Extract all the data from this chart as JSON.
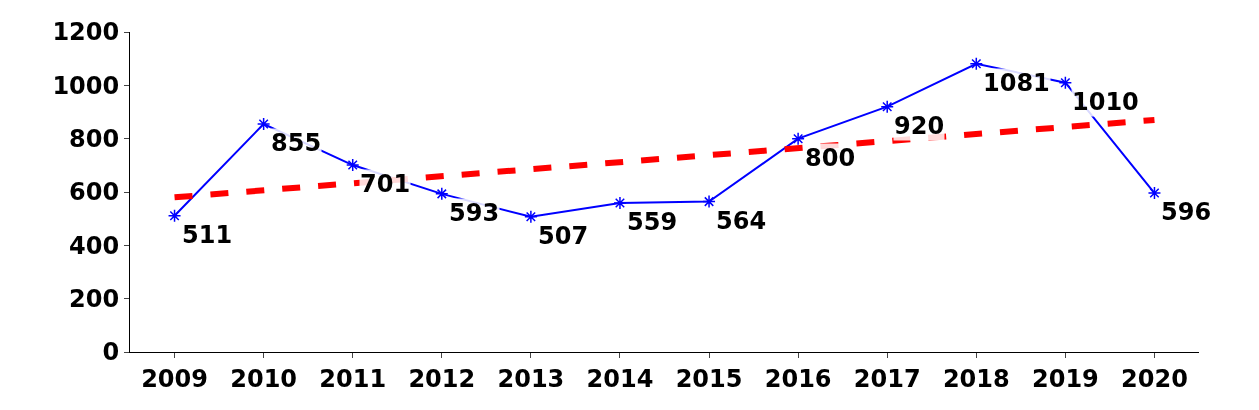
{
  "chart_data": {
    "type": "line",
    "categories": [
      "2009",
      "2010",
      "2011",
      "2012",
      "2013",
      "2014",
      "2015",
      "2016",
      "2017",
      "2018",
      "2019",
      "2020"
    ],
    "series": [
      {
        "color": "#0000ff",
        "marker": "cross",
        "line_style": "solid",
        "values": [
          511,
          855,
          701,
          593,
          507,
          559,
          564,
          800,
          920,
          1081,
          1010,
          596
        ],
        "value_labels": [
          "511",
          "855",
          "701",
          "593",
          "507",
          "559",
          "564",
          "800",
          "920",
          "1081",
          "1010",
          "596"
        ]
      },
      {
        "type": "line",
        "color": "#ff0000",
        "marker": "none",
        "line_style": "dashed",
        "values": [
          580,
          null,
          null,
          null,
          null,
          null,
          null,
          null,
          null,
          null,
          null,
          870
        ]
      }
    ],
    "ylim": [
      0,
      1200
    ],
    "yticks": [
      0,
      200,
      400,
      600,
      800,
      1000,
      1200
    ]
  }
}
